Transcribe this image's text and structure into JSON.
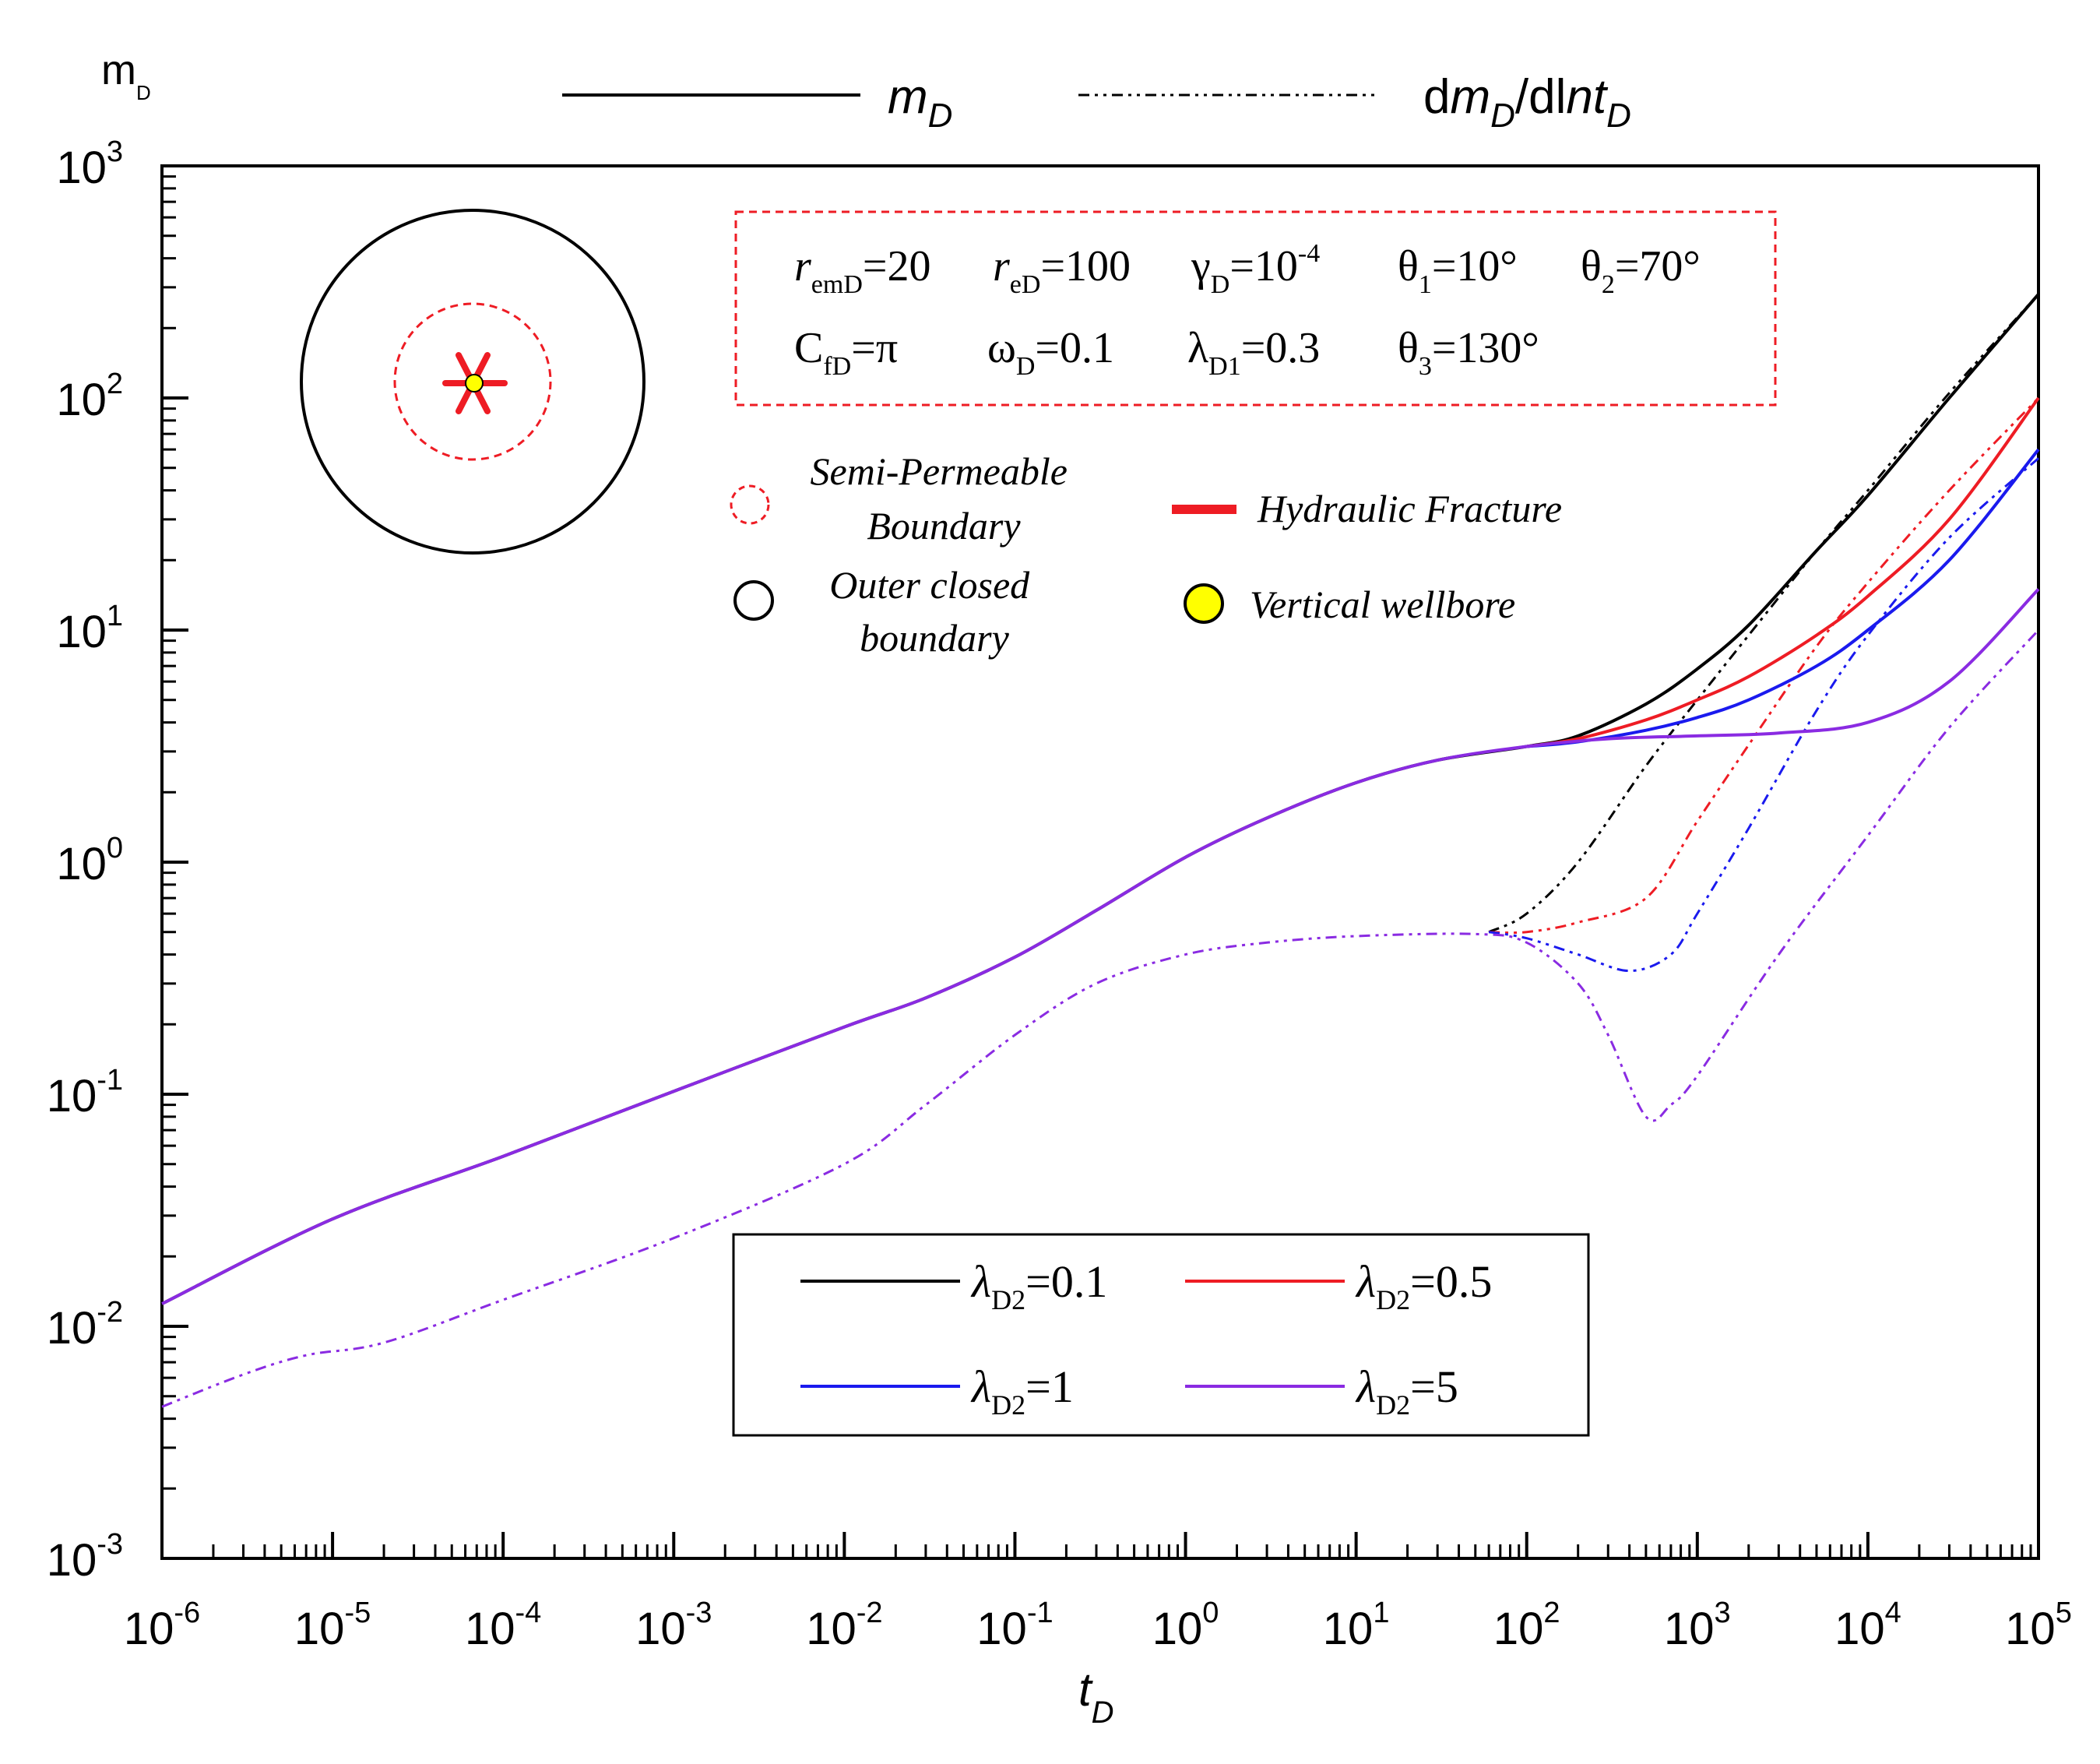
{
  "chart_data": {
    "type": "line",
    "title": "",
    "xlabel": "t",
    "xlabel_sub": "D",
    "ylabel": "m",
    "ylabel_sub": "D",
    "xscale": "log",
    "yscale": "log",
    "xlim": [
      1e-06,
      100000.0
    ],
    "ylim": [
      0.001,
      1000.0
    ],
    "x_ticks": [
      {
        "base": "10",
        "exp": "-6"
      },
      {
        "base": "10",
        "exp": "-5"
      },
      {
        "base": "10",
        "exp": "-4"
      },
      {
        "base": "10",
        "exp": "-3"
      },
      {
        "base": "10",
        "exp": "-2"
      },
      {
        "base": "10",
        "exp": "-1"
      },
      {
        "base": "10",
        "exp": "0"
      },
      {
        "base": "10",
        "exp": "1"
      },
      {
        "base": "10",
        "exp": "2"
      },
      {
        "base": "10",
        "exp": "3"
      },
      {
        "base": "10",
        "exp": "4"
      },
      {
        "base": "10",
        "exp": "5"
      }
    ],
    "y_ticks": [
      {
        "base": "10",
        "exp": "-3"
      },
      {
        "base": "10",
        "exp": "-2"
      },
      {
        "base": "10",
        "exp": "-1"
      },
      {
        "base": "10",
        "exp": "0"
      },
      {
        "base": "10",
        "exp": "1"
      },
      {
        "base": "10",
        "exp": "2"
      },
      {
        "base": "10",
        "exp": "3"
      }
    ],
    "style_legend": {
      "solid": {
        "label": "m",
        "sub": "D"
      },
      "dashed": {
        "pre": "d",
        "label": "m",
        "sub": "D",
        "mid": "/dl",
        "label2": "nt",
        "sub2": "D"
      }
    },
    "parameters": {
      "row1": [
        {
          "sym": "r",
          "sub": "emD",
          "val": "=20"
        },
        {
          "sym": "r",
          "sub": "eD",
          "val": "=100"
        },
        {
          "sym": "γ",
          "sub": "D",
          "val": "=10",
          "sup": "-4"
        },
        {
          "sym": "θ",
          "sub": "1",
          "val": "=10°"
        },
        {
          "sym": "θ",
          "sub": "2",
          "val": "=70°"
        }
      ],
      "row2": [
        {
          "sym": "C",
          "sub": "fD",
          "val": "=π"
        },
        {
          "sym": "ω",
          "sub": "D",
          "val": "=0.1"
        },
        {
          "sym": "λ",
          "sub": "D1",
          "val": "=0.3"
        },
        {
          "sym": "θ",
          "sub": "3",
          "val": "=130°"
        }
      ]
    },
    "schematic_legend": [
      {
        "symbol": "semi-permeable",
        "lines": [
          "Semi-Permeable",
          "Boundary"
        ]
      },
      {
        "symbol": "hydraulic-fracture",
        "lines": [
          "Hydraulic Fracture"
        ]
      },
      {
        "symbol": "outer-boundary",
        "lines": [
          "Outer closed",
          "boundary"
        ]
      },
      {
        "symbol": "vertical-wellbore",
        "lines": [
          "Vertical wellbore"
        ]
      }
    ],
    "series": [
      {
        "name": "λD2=0.1",
        "sym": "λ",
        "sub": "D2",
        "val": "=0.1",
        "color": "#000000",
        "mD": [
          [
            1e-06,
            0.0125
          ],
          [
            1e-05,
            0.029
          ],
          [
            0.0001,
            0.054
          ],
          [
            0.001,
            0.103
          ],
          [
            0.01,
            0.195
          ],
          [
            0.03,
            0.26
          ],
          [
            0.1,
            0.39
          ],
          [
            0.3,
            0.62
          ],
          [
            1,
            1.05
          ],
          [
            3,
            1.55
          ],
          [
            10,
            2.2
          ],
          [
            30,
            2.75
          ],
          [
            100,
            3.15
          ],
          [
            200,
            3.5
          ],
          [
            500,
            4.8
          ],
          [
            1000,
            6.8
          ],
          [
            2000,
            10.5
          ],
          [
            5000,
            22
          ],
          [
            10000,
            38
          ],
          [
            30000,
            100
          ],
          [
            100000,
            280
          ]
        ],
        "dmD": [
          [
            60,
            0.5
          ],
          [
            100,
            0.6
          ],
          [
            200,
            1.0
          ],
          [
            500,
            2.6
          ],
          [
            1000,
            5.0
          ],
          [
            2000,
            9.5
          ],
          [
            5000,
            22
          ],
          [
            10000,
            40
          ],
          [
            30000,
            105
          ],
          [
            100000,
            280
          ]
        ]
      },
      {
        "name": "λD2=0.5",
        "sym": "λ",
        "sub": "D2",
        "val": "=0.5",
        "color": "#ee1c24",
        "mD": [
          [
            100,
            3.15
          ],
          [
            200,
            3.4
          ],
          [
            500,
            4.1
          ],
          [
            1000,
            5.0
          ],
          [
            2000,
            6.3
          ],
          [
            5000,
            9.5
          ],
          [
            10000,
            14
          ],
          [
            30000,
            30
          ],
          [
            100000,
            100
          ]
        ],
        "dmD": [
          [
            60,
            0.5
          ],
          [
            100,
            0.5
          ],
          [
            200,
            0.55
          ],
          [
            500,
            0.7
          ],
          [
            1000,
            1.5
          ],
          [
            2000,
            3.2
          ],
          [
            5000,
            8.5
          ],
          [
            10000,
            16
          ],
          [
            30000,
            40
          ],
          [
            100000,
            100
          ]
        ]
      },
      {
        "name": "λD2=1",
        "sym": "λ",
        "sub": "D2",
        "val": "=1",
        "color": "#1a1aee",
        "mD": [
          [
            100,
            3.15
          ],
          [
            200,
            3.3
          ],
          [
            500,
            3.7
          ],
          [
            1000,
            4.2
          ],
          [
            2000,
            5.0
          ],
          [
            5000,
            7.0
          ],
          [
            10000,
            10
          ],
          [
            30000,
            20
          ],
          [
            100000,
            60
          ]
        ],
        "dmD": [
          [
            60,
            0.5
          ],
          [
            100,
            0.47
          ],
          [
            200,
            0.4
          ],
          [
            400,
            0.34
          ],
          [
            700,
            0.4
          ],
          [
            1000,
            0.6
          ],
          [
            2000,
            1.4
          ],
          [
            5000,
            4.5
          ],
          [
            10000,
            9.5
          ],
          [
            30000,
            25
          ],
          [
            100000,
            55
          ]
        ]
      },
      {
        "name": "λD2=5",
        "sym": "λ",
        "sub": "D2",
        "val": "=5",
        "color": "#8a2be2",
        "mD": [
          [
            1e-06,
            0.0125
          ],
          [
            1e-05,
            0.029
          ],
          [
            0.0001,
            0.054
          ],
          [
            0.001,
            0.103
          ],
          [
            0.01,
            0.195
          ],
          [
            0.03,
            0.26
          ],
          [
            0.1,
            0.39
          ],
          [
            0.3,
            0.62
          ],
          [
            1,
            1.05
          ],
          [
            3,
            1.55
          ],
          [
            10,
            2.2
          ],
          [
            30,
            2.75
          ],
          [
            100,
            3.15
          ],
          [
            300,
            3.4
          ],
          [
            1000,
            3.5
          ],
          [
            3000,
            3.6
          ],
          [
            10000,
            4.0
          ],
          [
            30000,
            6.0
          ],
          [
            100000,
            15
          ]
        ],
        "dmD": [
          [
            1e-06,
            0.0045
          ],
          [
            3e-06,
            0.0062
          ],
          [
            7e-06,
            0.0075
          ],
          [
            2e-05,
            0.0085
          ],
          [
            0.0001,
            0.013
          ],
          [
            0.001,
            0.024
          ],
          [
            0.01,
            0.05
          ],
          [
            0.03,
            0.09
          ],
          [
            0.1,
            0.18
          ],
          [
            0.3,
            0.3
          ],
          [
            1,
            0.4
          ],
          [
            3,
            0.45
          ],
          [
            10,
            0.48
          ],
          [
            50,
            0.49
          ],
          [
            100,
            0.45
          ],
          [
            200,
            0.3
          ],
          [
            300,
            0.18
          ],
          [
            500,
            0.08
          ],
          [
            700,
            0.09
          ],
          [
            1000,
            0.12
          ],
          [
            3000,
            0.4
          ],
          [
            10000,
            1.3
          ],
          [
            30000,
            3.8
          ],
          [
            100000,
            10
          ]
        ]
      }
    ]
  }
}
